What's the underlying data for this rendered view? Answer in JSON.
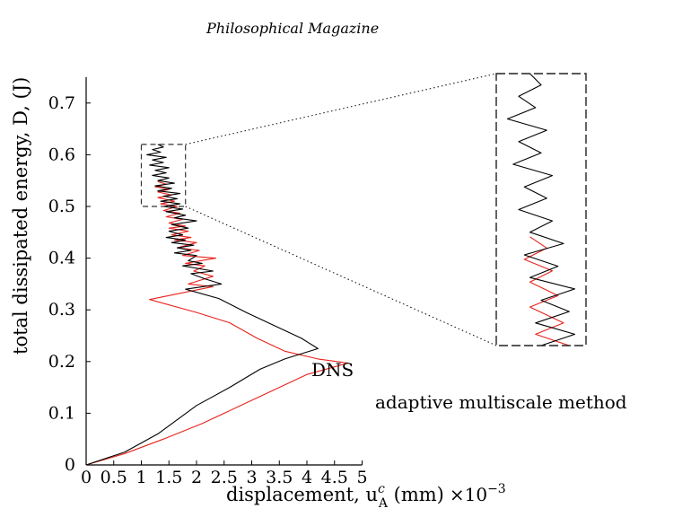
{
  "header": {
    "journal": "Philosophical Magazine"
  },
  "chart_data": {
    "type": "line",
    "xlabel": "displacement, u",
    "xlabel_sup": "c",
    "xlabel_sub": "A",
    "xlabel_unit": " (mm)",
    "x_multiplier": "×10",
    "x_multiplier_exp": "−3",
    "ylabel": "total dissipated energy, D, (J)",
    "xlim": [
      0,
      5
    ],
    "ylim": [
      0,
      0.75
    ],
    "xticks": [
      "0",
      "0.5",
      "1",
      "1.5",
      "2",
      "2.5",
      "3",
      "3.5",
      "4",
      "4.5",
      "5"
    ],
    "yticks": [
      "0",
      "0.1",
      "0.2",
      "0.3",
      "0.4",
      "0.5",
      "0.6",
      "0.7"
    ],
    "grid": false,
    "annotations": [
      "DNS",
      "adaptive multiscale method"
    ],
    "inset_box": {
      "x": [
        1.0,
        1.8
      ],
      "y": [
        0.5,
        0.62
      ]
    },
    "series": [
      {
        "name": "DNS",
        "color": "#000000",
        "points": [
          [
            0,
            0
          ],
          [
            0.7,
            0.025
          ],
          [
            1.3,
            0.06
          ],
          [
            2.0,
            0.115
          ],
          [
            2.6,
            0.15
          ],
          [
            3.15,
            0.185
          ],
          [
            3.6,
            0.205
          ],
          [
            4.2,
            0.225
          ],
          [
            3.9,
            0.245
          ],
          [
            3.4,
            0.27
          ],
          [
            2.9,
            0.295
          ],
          [
            2.4,
            0.322
          ],
          [
            1.8,
            0.34
          ],
          [
            2.45,
            0.35
          ],
          [
            2.15,
            0.36
          ],
          [
            1.9,
            0.37
          ],
          [
            2.3,
            0.375
          ],
          [
            1.75,
            0.385
          ],
          [
            2.1,
            0.39
          ],
          [
            1.85,
            0.395
          ],
          [
            2.0,
            0.405
          ],
          [
            1.6,
            0.41
          ],
          [
            1.9,
            0.415
          ],
          [
            1.65,
            0.42
          ],
          [
            1.95,
            0.425
          ],
          [
            1.55,
            0.43
          ],
          [
            1.8,
            0.435
          ],
          [
            1.45,
            0.44
          ],
          [
            1.75,
            0.445
          ],
          [
            1.5,
            0.452
          ],
          [
            1.85,
            0.458
          ],
          [
            1.55,
            0.465
          ],
          [
            2.0,
            0.472
          ],
          [
            1.6,
            0.478
          ],
          [
            1.8,
            0.483
          ],
          [
            1.45,
            0.49
          ],
          [
            1.75,
            0.495
          ],
          [
            1.4,
            0.5
          ],
          [
            1.7,
            0.505
          ],
          [
            1.35,
            0.51
          ],
          [
            1.65,
            0.515
          ],
          [
            1.4,
            0.52
          ],
          [
            1.7,
            0.525
          ],
          [
            1.3,
            0.53
          ],
          [
            1.55,
            0.535
          ],
          [
            1.25,
            0.54
          ],
          [
            1.6,
            0.545
          ],
          [
            1.3,
            0.55
          ],
          [
            1.5,
            0.555
          ],
          [
            1.2,
            0.56
          ],
          [
            1.45,
            0.565
          ],
          [
            1.25,
            0.57
          ],
          [
            1.5,
            0.575
          ],
          [
            1.15,
            0.58
          ],
          [
            1.4,
            0.585
          ],
          [
            1.2,
            0.59
          ],
          [
            1.45,
            0.595
          ],
          [
            1.1,
            0.6
          ],
          [
            1.35,
            0.605
          ],
          [
            1.2,
            0.61
          ],
          [
            1.4,
            0.615
          ],
          [
            1.3,
            0.62
          ]
        ]
      },
      {
        "name": "adaptive multiscale method",
        "color": "#e8231d",
        "points": [
          [
            0,
            0
          ],
          [
            0.7,
            0.022
          ],
          [
            1.4,
            0.05
          ],
          [
            2.1,
            0.08
          ],
          [
            2.8,
            0.115
          ],
          [
            3.5,
            0.15
          ],
          [
            4.0,
            0.175
          ],
          [
            4.75,
            0.197
          ],
          [
            4.2,
            0.205
          ],
          [
            3.6,
            0.22
          ],
          [
            3.1,
            0.245
          ],
          [
            2.6,
            0.275
          ],
          [
            2.0,
            0.295
          ],
          [
            1.15,
            0.32
          ],
          [
            2.3,
            0.345
          ],
          [
            1.85,
            0.35
          ],
          [
            2.3,
            0.365
          ],
          [
            1.95,
            0.375
          ],
          [
            2.15,
            0.385
          ],
          [
            1.8,
            0.39
          ],
          [
            2.35,
            0.4
          ],
          [
            1.75,
            0.405
          ],
          [
            2.05,
            0.415
          ],
          [
            1.65,
            0.42
          ],
          [
            2.0,
            0.43
          ],
          [
            1.6,
            0.435
          ],
          [
            1.9,
            0.44
          ],
          [
            1.55,
            0.445
          ],
          [
            1.85,
            0.452
          ],
          [
            1.5,
            0.458
          ],
          [
            1.8,
            0.462
          ],
          [
            1.5,
            0.468
          ],
          [
            1.75,
            0.475
          ],
          [
            1.45,
            0.48
          ],
          [
            1.7,
            0.487
          ],
          [
            1.4,
            0.492
          ],
          [
            1.65,
            0.5
          ],
          [
            1.35,
            0.505
          ],
          [
            1.6,
            0.51
          ],
          [
            1.3,
            0.517
          ],
          [
            1.55,
            0.522
          ],
          [
            1.3,
            0.528
          ],
          [
            1.5,
            0.533
          ],
          [
            1.25,
            0.538
          ],
          [
            1.45,
            0.543
          ],
          [
            1.3,
            0.548
          ]
        ]
      }
    ]
  }
}
